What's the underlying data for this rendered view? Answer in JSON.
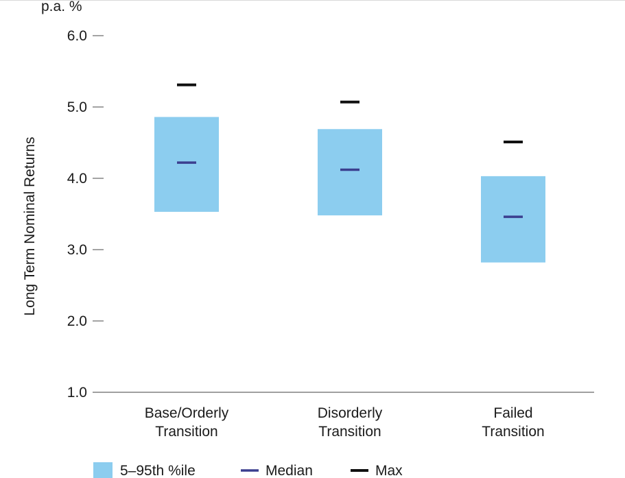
{
  "chart_data": {
    "type": "box",
    "unit_label": "p.a. %",
    "ylabel": "Long Term Nominal Returns",
    "ylim": [
      1.0,
      6.0
    ],
    "yticks": [
      "1.0",
      "2.0",
      "3.0",
      "4.0",
      "5.0",
      "6.0"
    ],
    "categories": [
      {
        "lines": [
          "Base/Orderly",
          "Transition"
        ]
      },
      {
        "lines": [
          "Disorderly",
          "Transition"
        ]
      },
      {
        "lines": [
          "Failed",
          "Transition"
        ]
      }
    ],
    "series": [
      {
        "name": "5–95th %ile",
        "kind": "range",
        "low": [
          3.53,
          3.48,
          2.82
        ],
        "high": [
          4.86,
          4.69,
          4.03
        ]
      },
      {
        "name": "Median",
        "kind": "marker",
        "values": [
          4.22,
          4.12,
          3.46
        ]
      },
      {
        "name": "Max",
        "kind": "marker",
        "values": [
          5.31,
          5.07,
          4.51
        ]
      }
    ],
    "colors": {
      "range": "#8ccdef",
      "median": "#3b3f8f",
      "max": "#111111",
      "axis": "#666666",
      "text": "#1a1a1a"
    },
    "grid": false,
    "legend_position": "bottom"
  }
}
